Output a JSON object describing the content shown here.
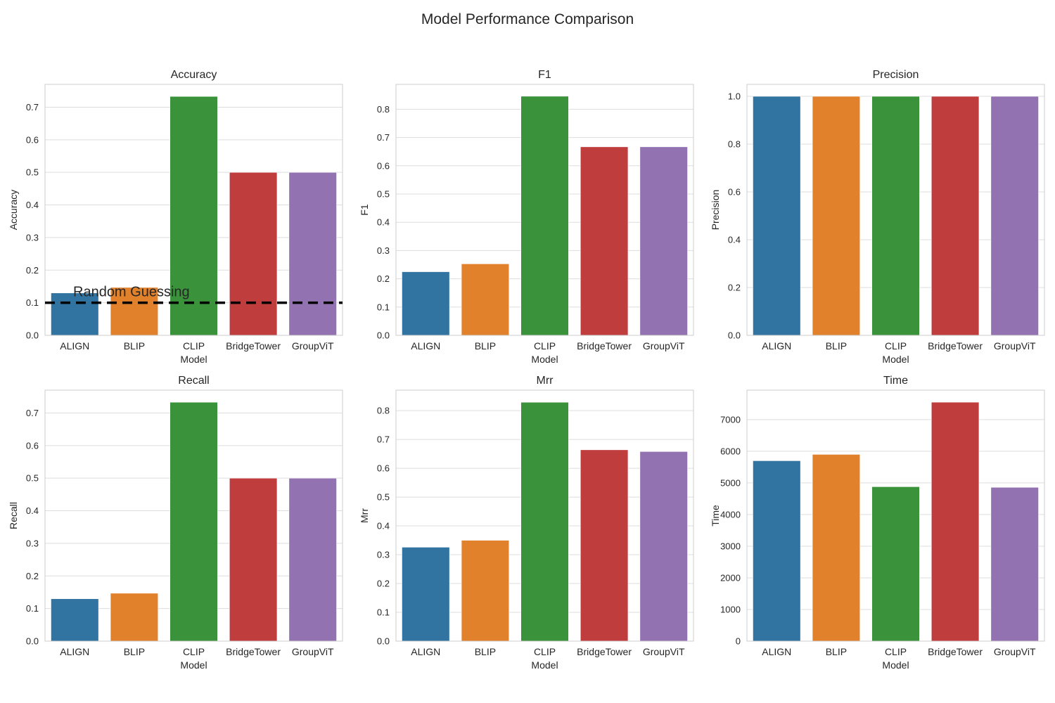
{
  "figure": {
    "title": "Model Performance Comparison"
  },
  "colors": {
    "ALIGN": "#3274a1",
    "BLIP": "#e1812c",
    "CLIP": "#3a923a",
    "BridgeTower": "#c03d3e",
    "GroupViT": "#9372b2",
    "grid": "#dddddd",
    "frame": "#cccccc",
    "reference_line": "#000000"
  },
  "chart_data": [
    {
      "type": "bar",
      "title": "Accuracy",
      "xlabel": "Model",
      "ylabel": "Accuracy",
      "categories": [
        "ALIGN",
        "BLIP",
        "CLIP",
        "BridgeTower",
        "GroupViT"
      ],
      "values": [
        0.13,
        0.147,
        0.733,
        0.5,
        0.5
      ],
      "ylim": [
        0,
        0.77
      ],
      "yticks": [
        "0.0",
        "0.1",
        "0.2",
        "0.3",
        "0.4",
        "0.5",
        "0.6",
        "0.7"
      ],
      "ytick_values": [
        0,
        0.1,
        0.2,
        0.3,
        0.4,
        0.5,
        0.6,
        0.7
      ],
      "grid": true,
      "reference_line": {
        "y": 0.1,
        "style": "dashed",
        "label": "Random Guessing"
      }
    },
    {
      "type": "bar",
      "title": "F1",
      "xlabel": "Model",
      "ylabel": "F1",
      "categories": [
        "ALIGN",
        "BLIP",
        "CLIP",
        "BridgeTower",
        "GroupViT"
      ],
      "values": [
        0.225,
        0.253,
        0.846,
        0.667,
        0.667
      ],
      "ylim": [
        0,
        0.888
      ],
      "yticks": [
        "0.0",
        "0.1",
        "0.2",
        "0.3",
        "0.4",
        "0.5",
        "0.6",
        "0.7",
        "0.8"
      ],
      "ytick_values": [
        0,
        0.1,
        0.2,
        0.3,
        0.4,
        0.5,
        0.6,
        0.7,
        0.8
      ],
      "grid": true
    },
    {
      "type": "bar",
      "title": "Precision",
      "xlabel": "Model",
      "ylabel": "Precision",
      "categories": [
        "ALIGN",
        "BLIP",
        "CLIP",
        "BridgeTower",
        "GroupViT"
      ],
      "values": [
        1.0,
        1.0,
        1.0,
        1.0,
        1.0
      ],
      "ylim": [
        0,
        1.05
      ],
      "yticks": [
        "0.0",
        "0.2",
        "0.4",
        "0.6",
        "0.8",
        "1.0"
      ],
      "ytick_values": [
        0,
        0.2,
        0.4,
        0.6,
        0.8,
        1.0
      ],
      "grid": true
    },
    {
      "type": "bar",
      "title": "Recall",
      "xlabel": "Model",
      "ylabel": "Recall",
      "categories": [
        "ALIGN",
        "BLIP",
        "CLIP",
        "BridgeTower",
        "GroupViT"
      ],
      "values": [
        0.13,
        0.147,
        0.733,
        0.5,
        0.5
      ],
      "ylim": [
        0,
        0.77
      ],
      "yticks": [
        "0.0",
        "0.1",
        "0.2",
        "0.3",
        "0.4",
        "0.5",
        "0.6",
        "0.7"
      ],
      "ytick_values": [
        0,
        0.1,
        0.2,
        0.3,
        0.4,
        0.5,
        0.6,
        0.7
      ],
      "grid": true
    },
    {
      "type": "bar",
      "title": "Mrr",
      "xlabel": "Model",
      "ylabel": "Mrr",
      "categories": [
        "ALIGN",
        "BLIP",
        "CLIP",
        "BridgeTower",
        "GroupViT"
      ],
      "values": [
        0.326,
        0.35,
        0.829,
        0.664,
        0.658
      ],
      "ylim": [
        0,
        0.871
      ],
      "yticks": [
        "0.0",
        "0.1",
        "0.2",
        "0.3",
        "0.4",
        "0.5",
        "0.6",
        "0.7",
        "0.8"
      ],
      "ytick_values": [
        0,
        0.1,
        0.2,
        0.3,
        0.4,
        0.5,
        0.6,
        0.7,
        0.8
      ],
      "grid": true
    },
    {
      "type": "bar",
      "title": "Time",
      "xlabel": "Model",
      "ylabel": "Time",
      "categories": [
        "ALIGN",
        "BLIP",
        "CLIP",
        "BridgeTower",
        "GroupViT"
      ],
      "values": [
        5700,
        5900,
        4880,
        7550,
        4860
      ],
      "ylim": [
        0,
        7930
      ],
      "yticks": [
        "0",
        "1000",
        "2000",
        "3000",
        "4000",
        "5000",
        "6000",
        "7000"
      ],
      "ytick_values": [
        0,
        1000,
        2000,
        3000,
        4000,
        5000,
        6000,
        7000
      ],
      "grid": true
    }
  ]
}
